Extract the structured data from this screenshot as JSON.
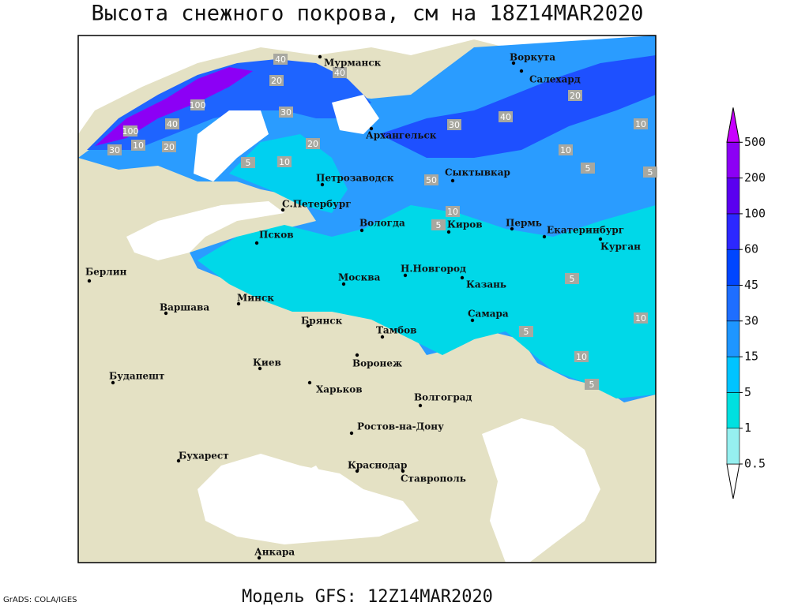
{
  "title": "Высота снежного покрова, см на 18Z14MAR2020",
  "subtitle": "Модель GFS: 12Z14MAR2020",
  "credit": "GrADS: COLA/IGES",
  "cities": [
    "Мурманск",
    "Воркута",
    "Салехард",
    "Архангельск",
    "Петрозаводск",
    "Сыктывкар",
    "С.Петербург",
    "Вологда",
    "Киров",
    "Пермь",
    "Екатеринбург",
    "Курган",
    "Псков",
    "Берлин",
    "Н.Новгород",
    "Москва",
    "Казань",
    "Минск",
    "Варшава",
    "Брянск",
    "Самара",
    "Тамбов",
    "Киев",
    "Воронеж",
    "Будапешт",
    "Харьков",
    "Волгоград",
    "Ростов-на-Дону",
    "Бухарест",
    "Краснодар",
    "Ставрополь",
    "Анкара"
  ],
  "contour_labels": [
    40,
    40,
    20,
    100,
    100,
    30,
    40,
    20,
    10,
    5,
    30,
    50,
    20,
    10,
    5,
    10,
    40,
    30,
    20,
    10,
    5,
    5,
    10,
    10,
    5,
    10,
    5,
    5
  ],
  "colorbar": {
    "levels": [
      0.5,
      1,
      5,
      15,
      30,
      45,
      60,
      100,
      200,
      500
    ],
    "colors": [
      "#ffffff",
      "#96f0f0",
      "#00e0e0",
      "#00c4ff",
      "#1e96ff",
      "#1e6eff",
      "#0046ff",
      "#2c28ff",
      "#5a00f0",
      "#8c00f5",
      "#c800ff"
    ]
  }
}
